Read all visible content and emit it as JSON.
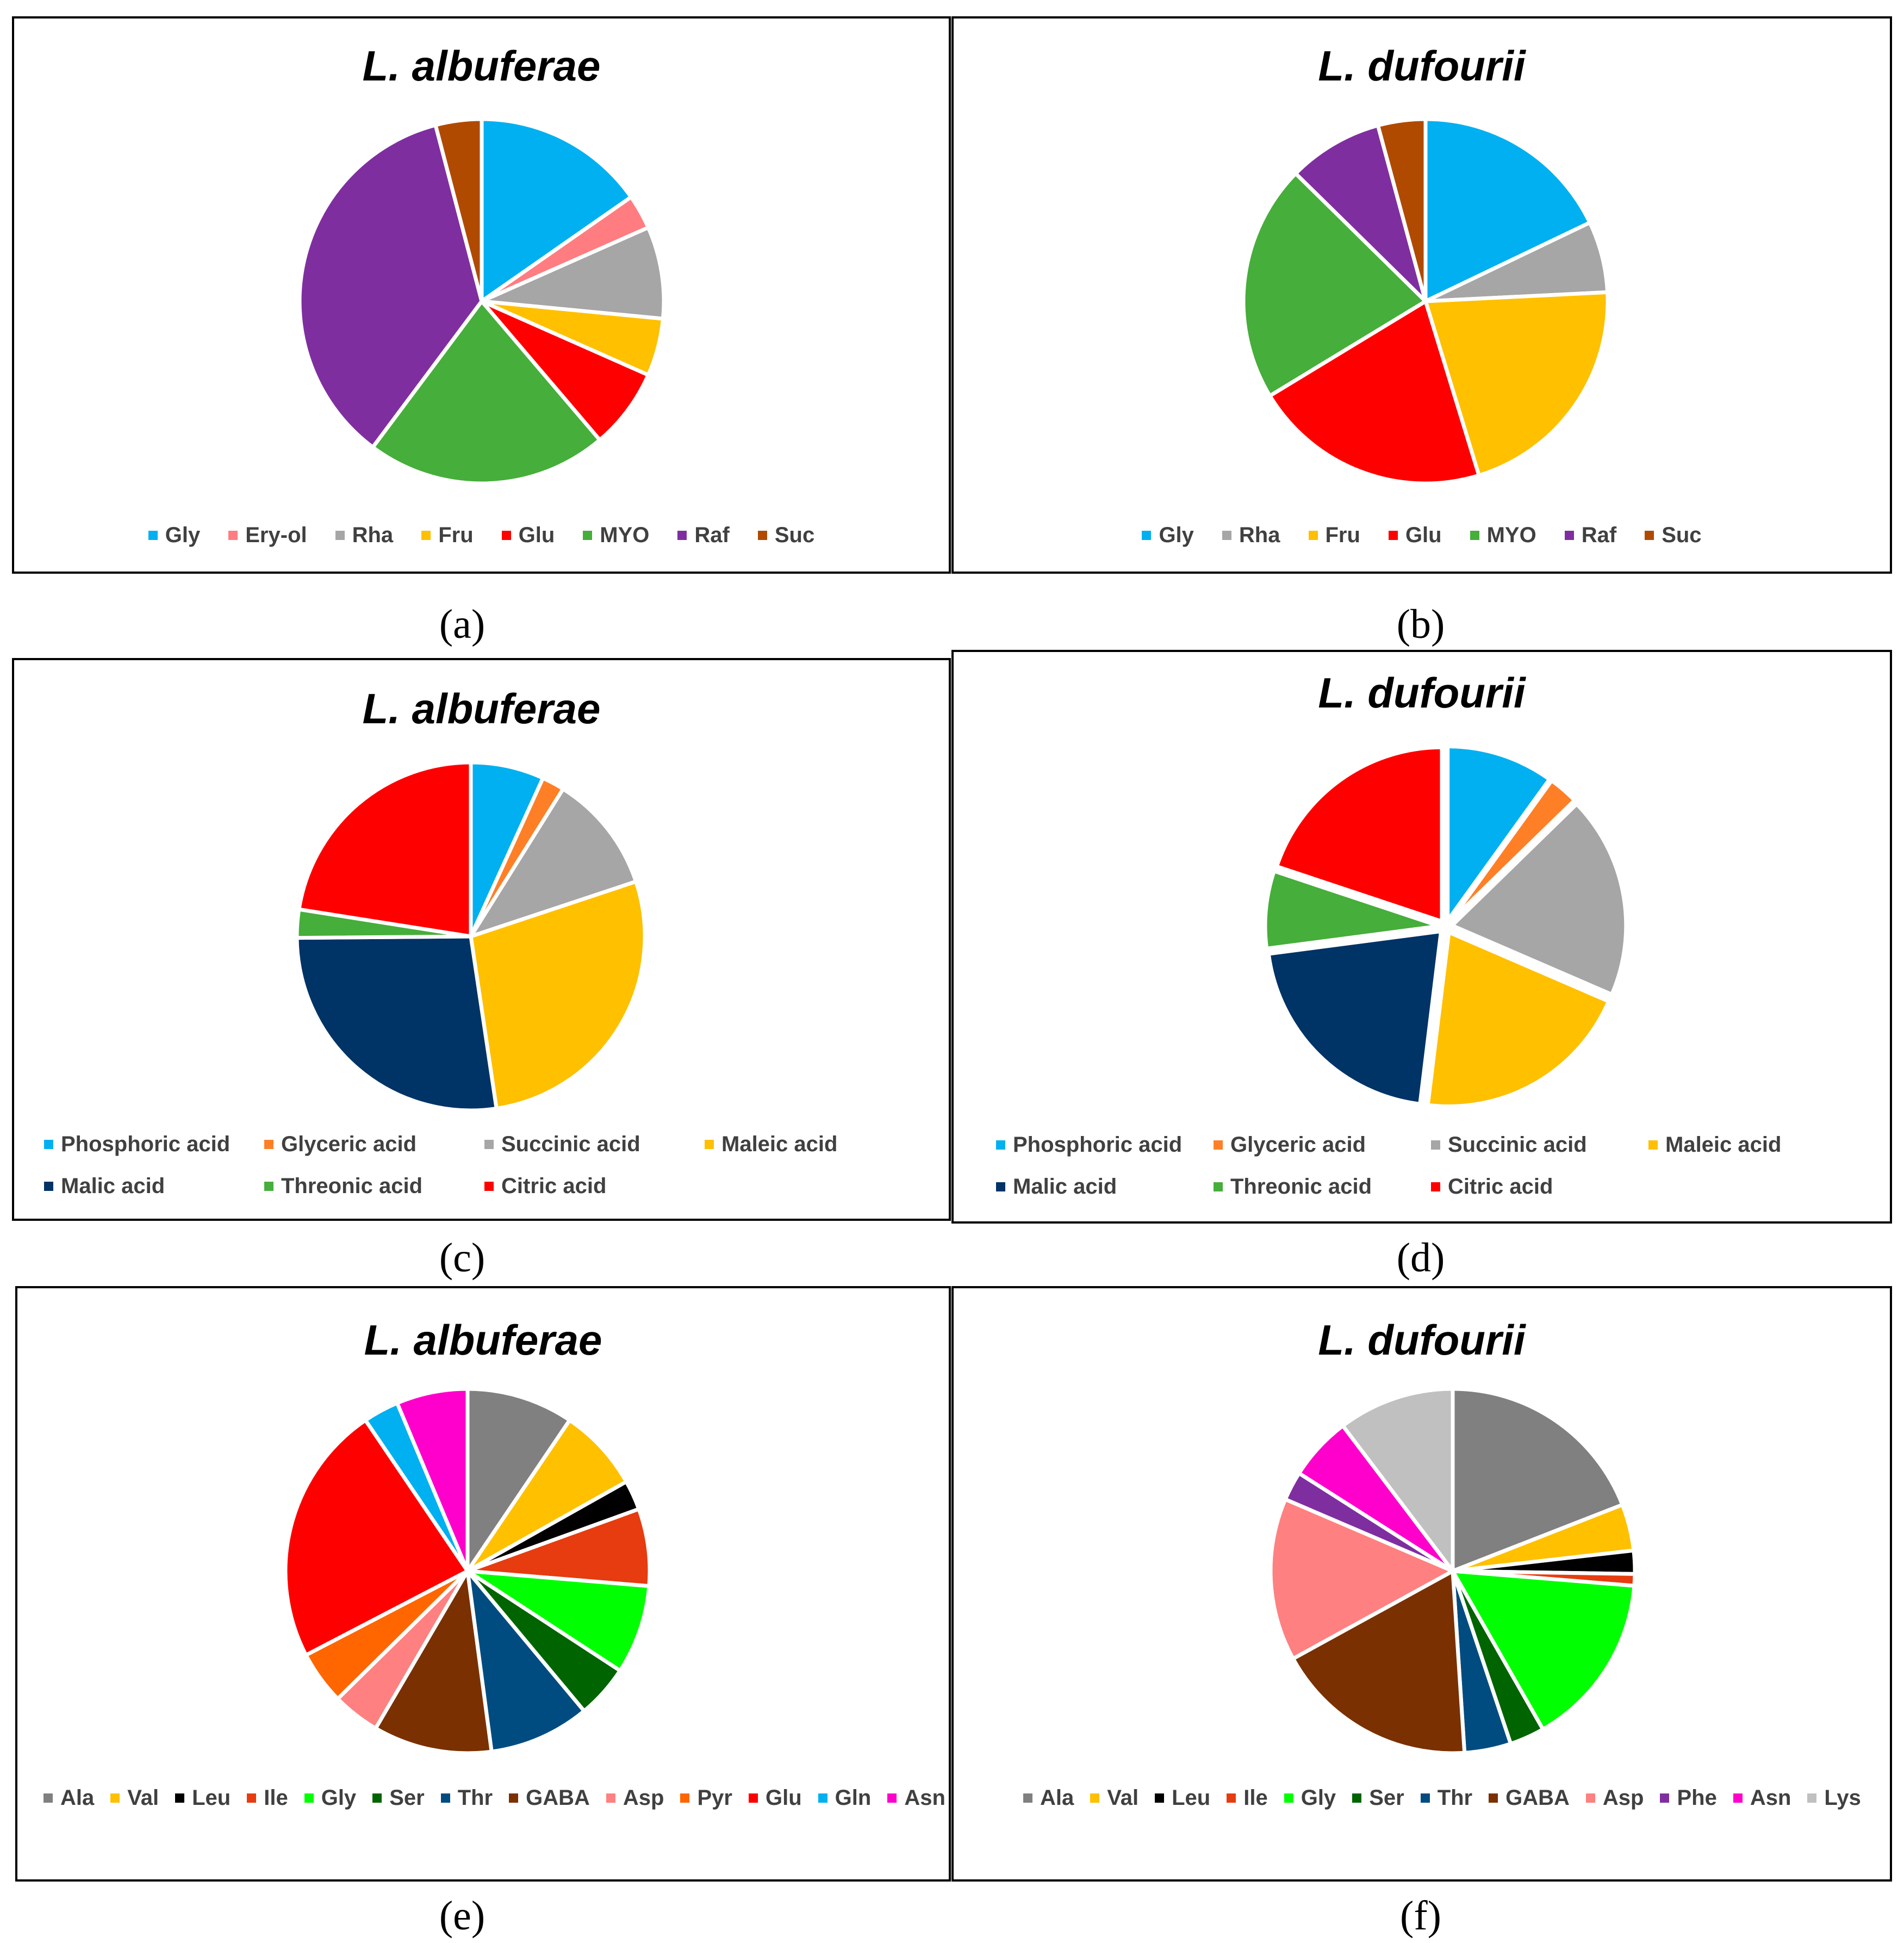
{
  "figure_captions": [
    "(a)",
    "(b)",
    "(c)",
    "(d)",
    "(e)",
    "(f)"
  ],
  "chart_data": [
    {
      "type": "pie",
      "title": "L. albuferae",
      "categories": [
        "Gly",
        "Ery-ol",
        "Rha",
        "Fru",
        "Glu",
        "MYO",
        "Raf",
        "Suc"
      ],
      "values": [
        15,
        3,
        8,
        5,
        7,
        21,
        35,
        4
      ],
      "colors": [
        "#00B0F0",
        "#FF7C80",
        "#A6A6A6",
        "#FFC000",
        "#FF0000",
        "#46AE3A",
        "#7F2EA0",
        "#B04A00"
      ],
      "legend_position": "bottom"
    },
    {
      "type": "pie",
      "title": "L. dufourii",
      "categories": [
        "Gly",
        "Rha",
        "Fru",
        "Glu",
        "MYO",
        "Raf",
        "Suc"
      ],
      "values": [
        17,
        6,
        20,
        20,
        20,
        8,
        4
      ],
      "colors": [
        "#00B0F0",
        "#A6A6A6",
        "#FFC000",
        "#FF0000",
        "#46AE3A",
        "#7F2EA0",
        "#B04A00"
      ],
      "legend_position": "bottom"
    },
    {
      "type": "pie",
      "title": "L. albuferae",
      "categories": [
        "Phosphoric acid",
        "Glyceric acid",
        "Succinic acid",
        "Maleic acid",
        "Malic acid",
        "Threonic acid",
        "Citric acid"
      ],
      "values": [
        6.5,
        2,
        10.5,
        26.5,
        26,
        2.5,
        21.5
      ],
      "colors": [
        "#00B0F0",
        "#FF7F27",
        "#A6A6A6",
        "#FFC000",
        "#003366",
        "#46AE3A",
        "#FF0000"
      ],
      "legend_position": "bottom"
    },
    {
      "type": "pie",
      "title": "L. dufourii",
      "categories": [
        "Phosphoric acid",
        "Glyceric acid",
        "Succinic acid",
        "Maleic acid",
        "Malic acid",
        "Threonic acid",
        "Citric acid"
      ],
      "values": [
        9,
        2.5,
        17,
        18.5,
        19,
        6.5,
        18
      ],
      "colors": [
        "#00B0F0",
        "#FF7F27",
        "#A6A6A6",
        "#FFC000",
        "#003366",
        "#46AE3A",
        "#FF0000"
      ],
      "explode": true,
      "legend_position": "bottom"
    },
    {
      "type": "pie",
      "title": "L. albuferae",
      "categories": [
        "Ala",
        "Val",
        "Leu",
        "Ile",
        "Gly",
        "Ser",
        "Thr",
        "GABA",
        "Asp",
        "Pyr",
        "Glu",
        "Gln",
        "Asn"
      ],
      "values": [
        9,
        7,
        2.5,
        6.5,
        7.5,
        4.5,
        8.5,
        10,
        4,
        4.5,
        22,
        3,
        6
      ],
      "colors": [
        "#808080",
        "#FFC000",
        "#000000",
        "#E63C0F",
        "#00FF00",
        "#006400",
        "#004C80",
        "#7A3000",
        "#FF8080",
        "#FF6600",
        "#FF0000",
        "#00B0F0",
        "#FF00CC"
      ],
      "legend_position": "bottom"
    },
    {
      "type": "pie",
      "title": "L. dufourii",
      "categories": [
        "Ala",
        "Val",
        "Leu",
        "Ile",
        "Gly",
        "Ser",
        "Thr",
        "GABA",
        "Asp",
        "Phe",
        "Asn",
        "Lys"
      ],
      "values": [
        18.5,
        4,
        2,
        1,
        15,
        3,
        4,
        17.5,
        14,
        2.5,
        5.5,
        10
      ],
      "colors": [
        "#808080",
        "#FFC000",
        "#000000",
        "#E63C0F",
        "#00FF00",
        "#006400",
        "#004C80",
        "#7A3000",
        "#FF8080",
        "#7F2EA0",
        "#FF00CC",
        "#C0C0C0"
      ],
      "legend_position": "bottom"
    }
  ]
}
